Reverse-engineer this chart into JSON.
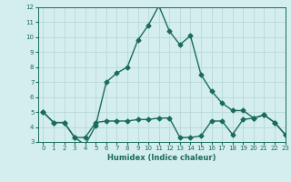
{
  "title": "",
  "xlabel": "Humidex (Indice chaleur)",
  "ylabel": "",
  "bg_color": "#d4eeee",
  "grid_color": "#b8d8d8",
  "line_color": "#1a6b5a",
  "x_values": [
    0,
    1,
    2,
    3,
    4,
    5,
    6,
    7,
    8,
    9,
    10,
    11,
    12,
    13,
    14,
    15,
    16,
    17,
    18,
    19,
    20,
    21,
    22,
    23
  ],
  "line1_y": [
    5.0,
    4.3,
    4.3,
    3.3,
    2.8,
    4.1,
    7.0,
    7.6,
    8.0,
    9.8,
    10.8,
    12.1,
    10.4,
    9.5,
    10.1,
    7.5,
    6.4,
    5.6,
    5.1,
    5.1,
    4.6,
    4.8,
    4.3,
    3.5
  ],
  "line2_y": [
    5.0,
    4.3,
    4.3,
    3.3,
    3.3,
    4.3,
    4.4,
    4.4,
    4.4,
    4.5,
    4.5,
    4.6,
    4.6,
    3.3,
    3.3,
    3.4,
    4.4,
    4.4,
    3.5,
    4.5,
    4.6,
    4.8,
    4.3,
    3.5
  ],
  "ylim": [
    3,
    12
  ],
  "xlim": [
    -0.5,
    23
  ],
  "yticks": [
    3,
    4,
    5,
    6,
    7,
    8,
    9,
    10,
    11,
    12
  ],
  "xticks": [
    0,
    1,
    2,
    3,
    4,
    5,
    6,
    7,
    8,
    9,
    10,
    11,
    12,
    13,
    14,
    15,
    16,
    17,
    18,
    19,
    20,
    21,
    22,
    23
  ],
  "marker": "D",
  "marker_size": 2.5,
  "line_width": 1.0
}
